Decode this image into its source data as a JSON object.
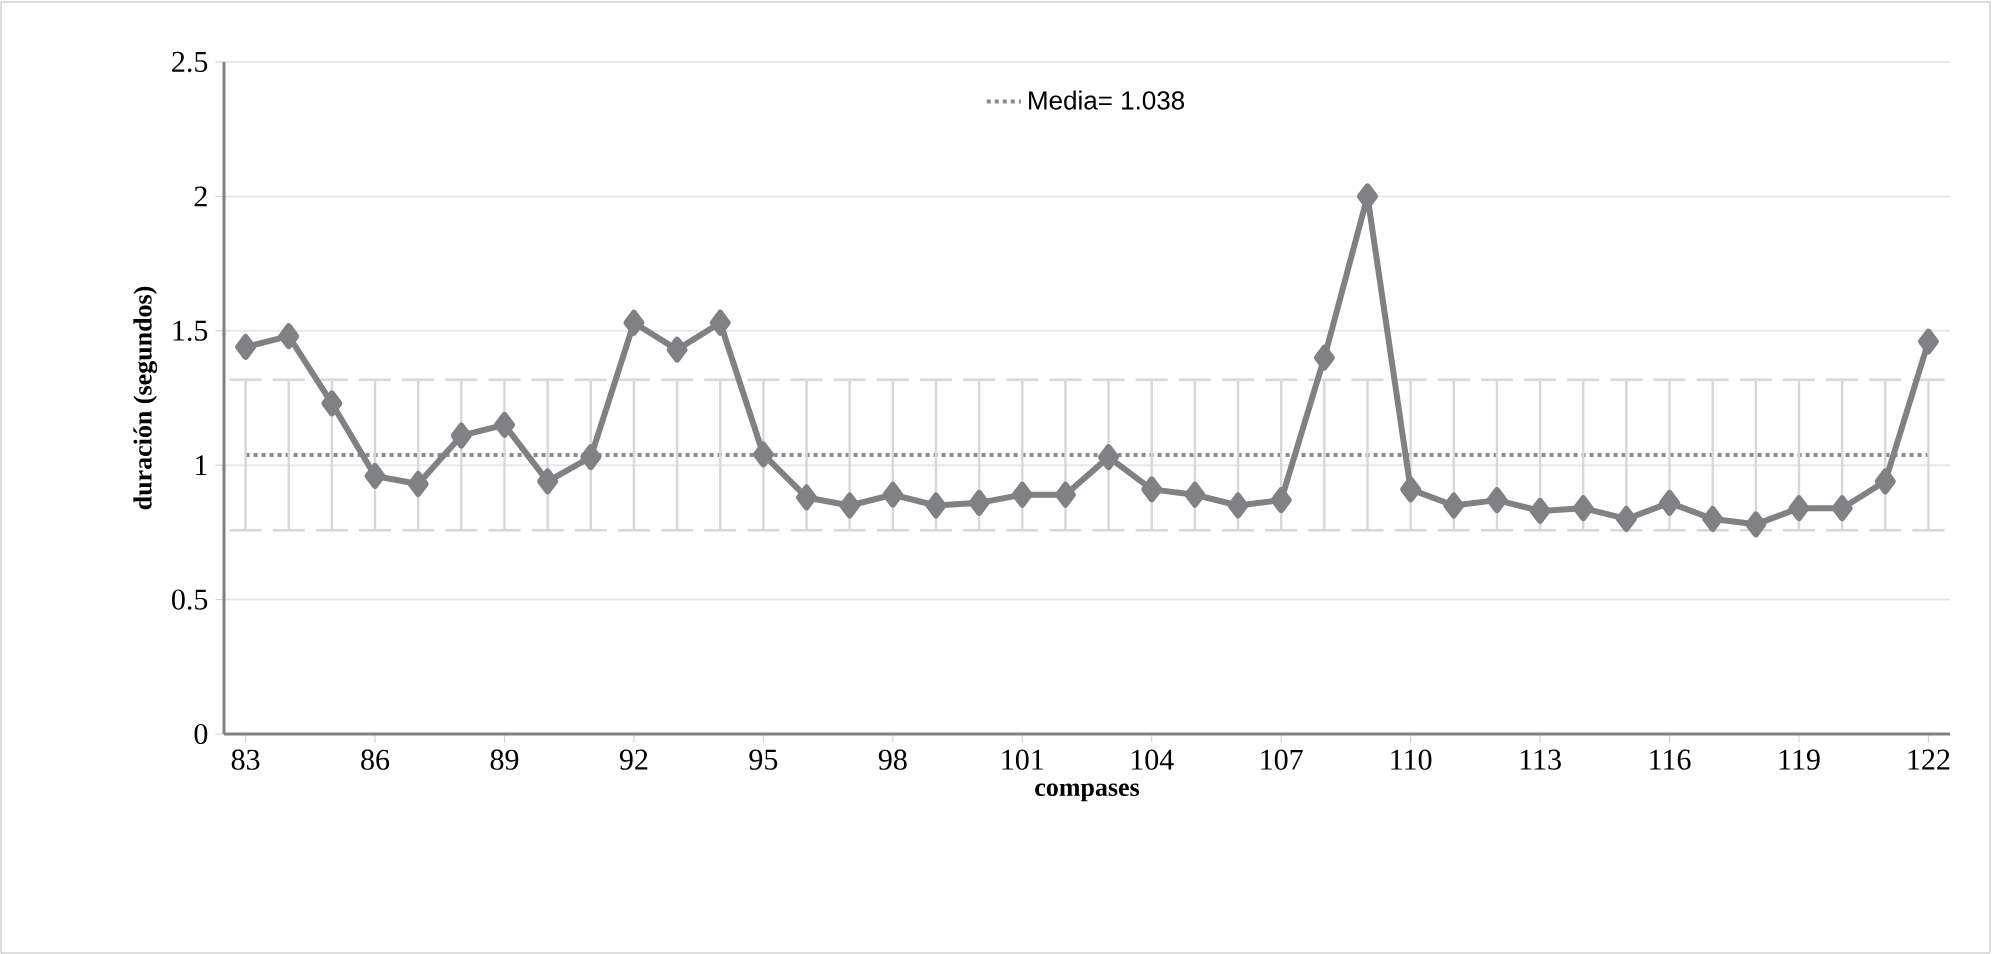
{
  "chart_data": {
    "type": "line",
    "xlabel": "compases",
    "ylabel": "duración (segundos)",
    "x": [
      83,
      84,
      85,
      86,
      87,
      88,
      89,
      90,
      91,
      92,
      93,
      94,
      95,
      96,
      97,
      98,
      99,
      100,
      101,
      102,
      103,
      104,
      105,
      106,
      107,
      108,
      109,
      110,
      111,
      112,
      113,
      114,
      115,
      116,
      117,
      118,
      119,
      120,
      121,
      122
    ],
    "series": [
      {
        "color": "#808185",
        "marker": "diamond",
        "line_style": "solid",
        "values": [
          1.44,
          1.48,
          1.23,
          0.96,
          0.93,
          1.11,
          1.15,
          0.94,
          1.03,
          1.53,
          1.43,
          1.53,
          1.04,
          0.88,
          0.85,
          0.89,
          0.85,
          0.86,
          0.89,
          0.89,
          1.03,
          0.91,
          0.89,
          0.85,
          0.87,
          1.4,
          2.0,
          0.91,
          0.85,
          0.87,
          0.83,
          0.84,
          0.8,
          0.86,
          0.8,
          0.78,
          0.84,
          0.84,
          0.94,
          1.46
        ]
      },
      {
        "name": "Media= 1.038",
        "color": "#8a8b8f",
        "marker": "none",
        "line_style": "dotted",
        "values": [
          1.038,
          1.038,
          1.038,
          1.038,
          1.038,
          1.038,
          1.038,
          1.038,
          1.038,
          1.038,
          1.038,
          1.038,
          1.038,
          1.038,
          1.038,
          1.038,
          1.038,
          1.038,
          1.038,
          1.038,
          1.038,
          1.038,
          1.038,
          1.038,
          1.038,
          1.038,
          1.038,
          1.038,
          1.038,
          1.038,
          1.038,
          1.038,
          1.038,
          1.038,
          1.038,
          1.038,
          1.038,
          1.038,
          1.038,
          1.038
        ],
        "errors": [
          0.28,
          0.28,
          0.28,
          0.28,
          0.28,
          0.28,
          0.28,
          0.28,
          0.28,
          0.28,
          0.28,
          0.28,
          0.28,
          0.28,
          0.28,
          0.28,
          0.28,
          0.28,
          0.28,
          0.28,
          0.28,
          0.28,
          0.28,
          0.28,
          0.28,
          0.28,
          0.28,
          0.28,
          0.28,
          0.28,
          0.28,
          0.28,
          0.28,
          0.28,
          0.28,
          0.28,
          0.28,
          0.28,
          0.28,
          0.28
        ]
      }
    ],
    "xlim": [
      82.5,
      122.5
    ],
    "xticks": [
      83,
      86,
      89,
      92,
      95,
      98,
      101,
      104,
      107,
      110,
      113,
      116,
      119,
      122
    ],
    "ylim": [
      0,
      2.5
    ],
    "yticks": [
      0,
      0.5,
      1,
      1.5,
      2,
      2.5
    ],
    "grid": "y",
    "legend": "top"
  }
}
